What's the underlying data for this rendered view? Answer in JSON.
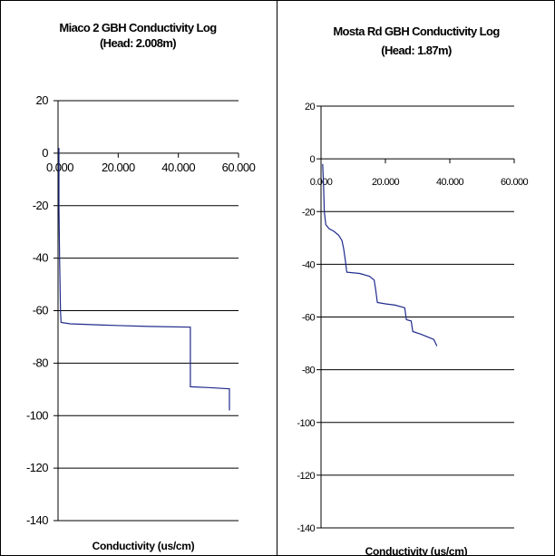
{
  "chart_data": [
    {
      "type": "line",
      "title": "Miaco 2 GBH Conductivity Log",
      "subtitle": "(Head: 2.008m)",
      "xlabel": "Conductivity (us/cm)",
      "ylabel": "",
      "xlim": [
        0,
        60
      ],
      "ylim": [
        -140,
        20
      ],
      "x_ticks": [
        "0.000",
        "20.000",
        "40.000",
        "60.000"
      ],
      "y_ticks": [
        "20",
        "0",
        "-20",
        "-40",
        "-60",
        "-80",
        "-100",
        "-120",
        "-140"
      ],
      "grid": true,
      "line_color": "#1f2a8c",
      "series": [
        {
          "points": [
            [
              0.3,
              2
            ],
            [
              0.3,
              -20
            ],
            [
              0.5,
              -40
            ],
            [
              0.8,
              -60
            ],
            [
              1.0,
              -64.5
            ],
            [
              4,
              -65.0
            ],
            [
              15,
              -65.5
            ],
            [
              30,
              -66.0
            ],
            [
              44,
              -66.3
            ],
            [
              44,
              -89
            ],
            [
              50,
              -89.3
            ],
            [
              57,
              -89.8
            ],
            [
              57,
              -98
            ]
          ]
        }
      ]
    },
    {
      "type": "line",
      "title": "Mosta Rd GBH Conductivity Log",
      "subtitle": "(Head: 1.87m)",
      "xlabel": "Conductivity (us/cm)",
      "ylabel": "",
      "xlim": [
        0,
        60
      ],
      "ylim": [
        -140,
        20
      ],
      "x_ticks": [
        "0.000",
        "20.000",
        "40.000",
        "60.000"
      ],
      "y_ticks": [
        "20",
        "0",
        "-20",
        "-40",
        "-60",
        "-80",
        "-100",
        "-120",
        "-140"
      ],
      "grid": true,
      "line_color": "#1f2a8c",
      "series": [
        {
          "points": [
            [
              0.5,
              -2
            ],
            [
              0.8,
              -10
            ],
            [
              1.0,
              -20
            ],
            [
              1.5,
              -25
            ],
            [
              2.5,
              -26.5
            ],
            [
              4,
              -27.5
            ],
            [
              5.5,
              -29
            ],
            [
              6.5,
              -31
            ],
            [
              7.0,
              -34
            ],
            [
              7.5,
              -38
            ],
            [
              8,
              -43
            ],
            [
              12,
              -43.5
            ],
            [
              15,
              -44.5
            ],
            [
              16.5,
              -46
            ],
            [
              17,
              -50
            ],
            [
              17.5,
              -54.5
            ],
            [
              20,
              -55
            ],
            [
              23,
              -55.5
            ],
            [
              26,
              -56.5
            ],
            [
              26.5,
              -61
            ],
            [
              28,
              -61.5
            ],
            [
              28.5,
              -65.5
            ],
            [
              31,
              -66.5
            ],
            [
              33,
              -67.5
            ],
            [
              35,
              -68.5
            ],
            [
              36,
              -71
            ]
          ]
        }
      ]
    }
  ]
}
